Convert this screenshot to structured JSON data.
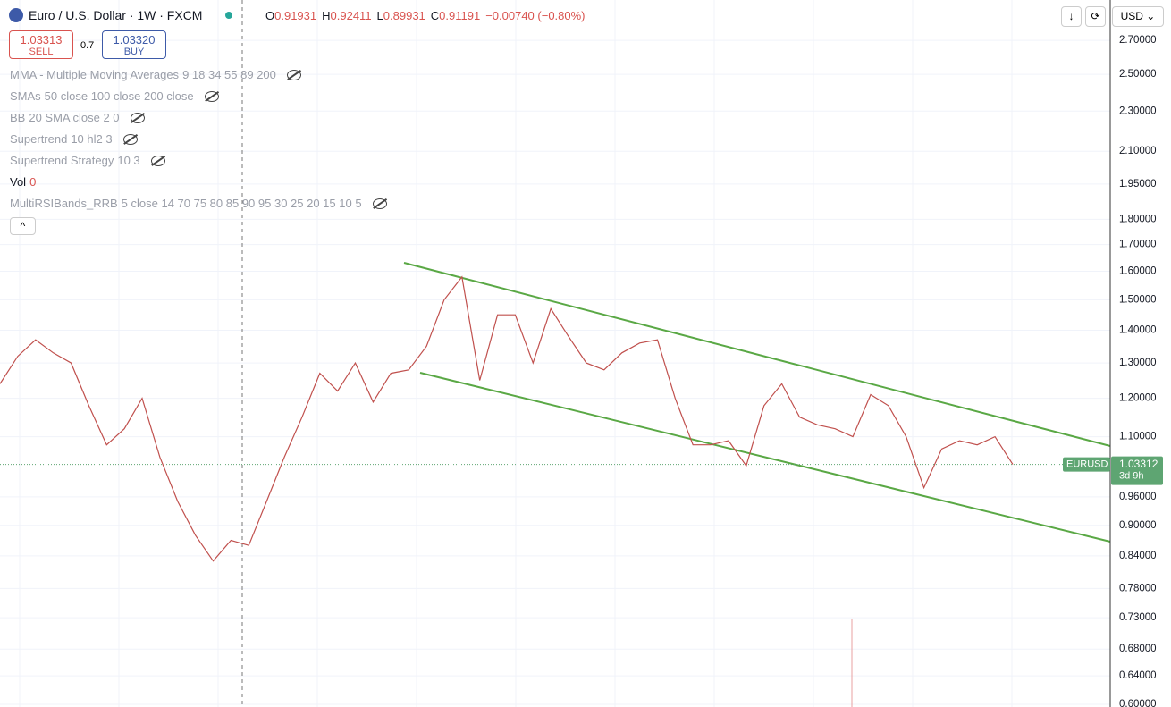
{
  "header": {
    "title": "Euro / U.S. Dollar · 1W · FXCM",
    "ohlc": [
      {
        "key": "O",
        "value": "0.91931"
      },
      {
        "key": "H",
        "value": "0.92411"
      },
      {
        "key": "L",
        "value": "0.89931"
      },
      {
        "key": "C",
        "value": "0.91191"
      }
    ],
    "change": "−0.00740 (−0.80%)",
    "currency": "USD"
  },
  "trade": {
    "sell_price": "1.03313",
    "sell_label": "SELL",
    "spread": "0.7",
    "buy_price": "1.03320",
    "buy_label": "BUY"
  },
  "indicators": [
    {
      "name": "MMA - Multiple Moving Averages",
      "params": "9 18 34 55 89 200"
    },
    {
      "name": "SMAs",
      "params": "50 close 100 close 200 close"
    },
    {
      "name": "BB",
      "params": "20 SMA close 2 0"
    },
    {
      "name": "Supertrend",
      "params": "10 hl2 3"
    },
    {
      "name": "Supertrend Strategy",
      "params": "10 3"
    },
    {
      "name": "Vol",
      "params": "0"
    },
    {
      "name": "MultiRSIBands_RRB",
      "params": "5 close 14 70 75 80 85 90 95 30 25 20 15 10 5"
    }
  ],
  "chart_data": {
    "type": "line",
    "log_scale": true,
    "grid": true,
    "ylim": [
      0.5964,
      2.958
    ],
    "yticks": [
      {
        "value": 2.7,
        "label": "2.70000"
      },
      {
        "value": 2.5,
        "label": "2.50000"
      },
      {
        "value": 2.3,
        "label": "2.30000"
      },
      {
        "value": 2.1,
        "label": "2.10000"
      },
      {
        "value": 1.95,
        "label": "1.95000"
      },
      {
        "value": 1.8,
        "label": "1.80000"
      },
      {
        "value": 1.7,
        "label": "1.70000"
      },
      {
        "value": 1.6,
        "label": "1.60000"
      },
      {
        "value": 1.5,
        "label": "1.50000"
      },
      {
        "value": 1.4,
        "label": "1.40000"
      },
      {
        "value": 1.3,
        "label": "1.30000"
      },
      {
        "value": 1.2,
        "label": "1.20000"
      },
      {
        "value": 1.1,
        "label": "1.10000"
      },
      {
        "value": 0.96,
        "label": "0.96000"
      },
      {
        "value": 0.9,
        "label": "0.90000"
      },
      {
        "value": 0.84,
        "label": "0.84000"
      },
      {
        "value": 0.78,
        "label": "0.78000"
      },
      {
        "value": 0.73,
        "label": "0.73000"
      },
      {
        "value": 0.68,
        "label": "0.68000"
      },
      {
        "value": 0.64,
        "label": "0.64000"
      },
      {
        "value": 0.6,
        "label": "0.60000"
      }
    ],
    "categories": [
      null,
      null,
      null,
      null,
      null,
      null,
      null,
      null,
      null,
      null,
      null,
      null,
      null,
      null,
      null,
      null,
      null,
      null,
      null,
      null,
      null,
      null,
      null,
      null,
      null,
      null,
      null,
      null,
      null,
      null,
      null,
      null,
      null,
      null,
      null,
      null,
      null,
      null,
      null,
      null,
      null,
      null,
      null,
      null,
      null,
      null,
      null,
      null,
      null,
      null,
      null,
      null,
      null,
      null,
      null,
      null,
      null,
      null
    ],
    "series": [
      {
        "name": "EURUSD",
        "color": "#c0504d",
        "values": [
          1.24,
          1.32,
          1.37,
          1.33,
          1.3,
          1.18,
          1.08,
          1.12,
          1.2,
          1.05,
          0.95,
          0.88,
          0.83,
          0.87,
          0.86,
          0.95,
          1.05,
          1.15,
          1.27,
          1.22,
          1.3,
          1.19,
          1.27,
          1.28,
          1.35,
          1.5,
          1.58,
          1.25,
          1.45,
          1.45,
          1.3,
          1.47,
          1.38,
          1.3,
          1.28,
          1.33,
          1.36,
          1.37,
          1.2,
          1.08,
          1.08,
          1.09,
          1.03,
          1.18,
          1.24,
          1.15,
          1.13,
          1.12,
          1.1,
          1.21,
          1.18,
          1.1,
          0.98,
          1.07,
          1.09,
          1.08,
          1.1,
          1.03312
        ],
        "value_labels": "1.03312"
      }
    ],
    "last_price_label": "1.03312",
    "countdown": "3d 9h"
  }
}
